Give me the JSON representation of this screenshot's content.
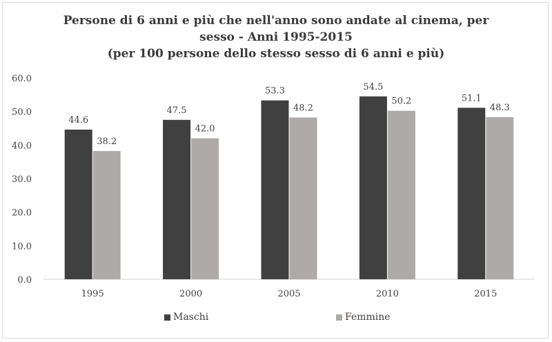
{
  "chart_data": {
    "type": "bar",
    "title_lines": [
      "Persone di 6 anni e più che nell'anno sono andate al cinema, per",
      "sesso - Anni 1995-2015",
      "(per 100 persone dello stesso sesso di 6 anni e più)"
    ],
    "categories": [
      "1995",
      "2000",
      "2005",
      "2010",
      "2015"
    ],
    "series": [
      {
        "name": "Maschi",
        "values": [
          44.6,
          47.5,
          53.3,
          54.5,
          51.1
        ],
        "color": "#404040"
      },
      {
        "name": "Femmine",
        "values": [
          38.2,
          42.0,
          48.2,
          50.2,
          48.3
        ],
        "color": "#aeaaaa"
      }
    ],
    "ylim": [
      0,
      60
    ],
    "yticks": [
      "0.0",
      "10.0",
      "20.0",
      "30.0",
      "40.0",
      "50.0",
      "60.0"
    ],
    "xlabel": "",
    "ylabel": "",
    "grid": false,
    "legend_position": "bottom"
  }
}
